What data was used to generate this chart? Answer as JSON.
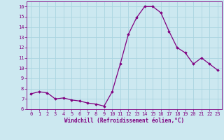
{
  "x": [
    0,
    1,
    2,
    3,
    4,
    5,
    6,
    7,
    8,
    9,
    10,
    11,
    12,
    13,
    14,
    15,
    16,
    17,
    18,
    19,
    20,
    21,
    22,
    23
  ],
  "y": [
    7.5,
    7.7,
    7.6,
    7.0,
    7.1,
    6.9,
    6.8,
    6.6,
    6.5,
    6.3,
    7.7,
    10.4,
    13.3,
    14.9,
    16.0,
    16.0,
    15.4,
    13.6,
    12.0,
    11.5,
    10.4,
    11.0,
    10.4,
    9.8
  ],
  "line_color": "#800080",
  "marker": "D",
  "marker_size": 1.8,
  "line_width": 0.9,
  "xlabel": "Windchill (Refroidissement éolien,°C)",
  "ylim": [
    6,
    16.5
  ],
  "xlim": [
    -0.5,
    23.5
  ],
  "yticks": [
    6,
    7,
    8,
    9,
    10,
    11,
    12,
    13,
    14,
    15,
    16
  ],
  "xticks": [
    0,
    1,
    2,
    3,
    4,
    5,
    6,
    7,
    8,
    9,
    10,
    11,
    12,
    13,
    14,
    15,
    16,
    17,
    18,
    19,
    20,
    21,
    22,
    23
  ],
  "background_color": "#cce8f0",
  "grid_color": "#aad4e0",
  "tick_label_color": "#800080",
  "xlabel_color": "#800080",
  "tick_fontsize": 5.0,
  "xlabel_fontsize": 5.5
}
